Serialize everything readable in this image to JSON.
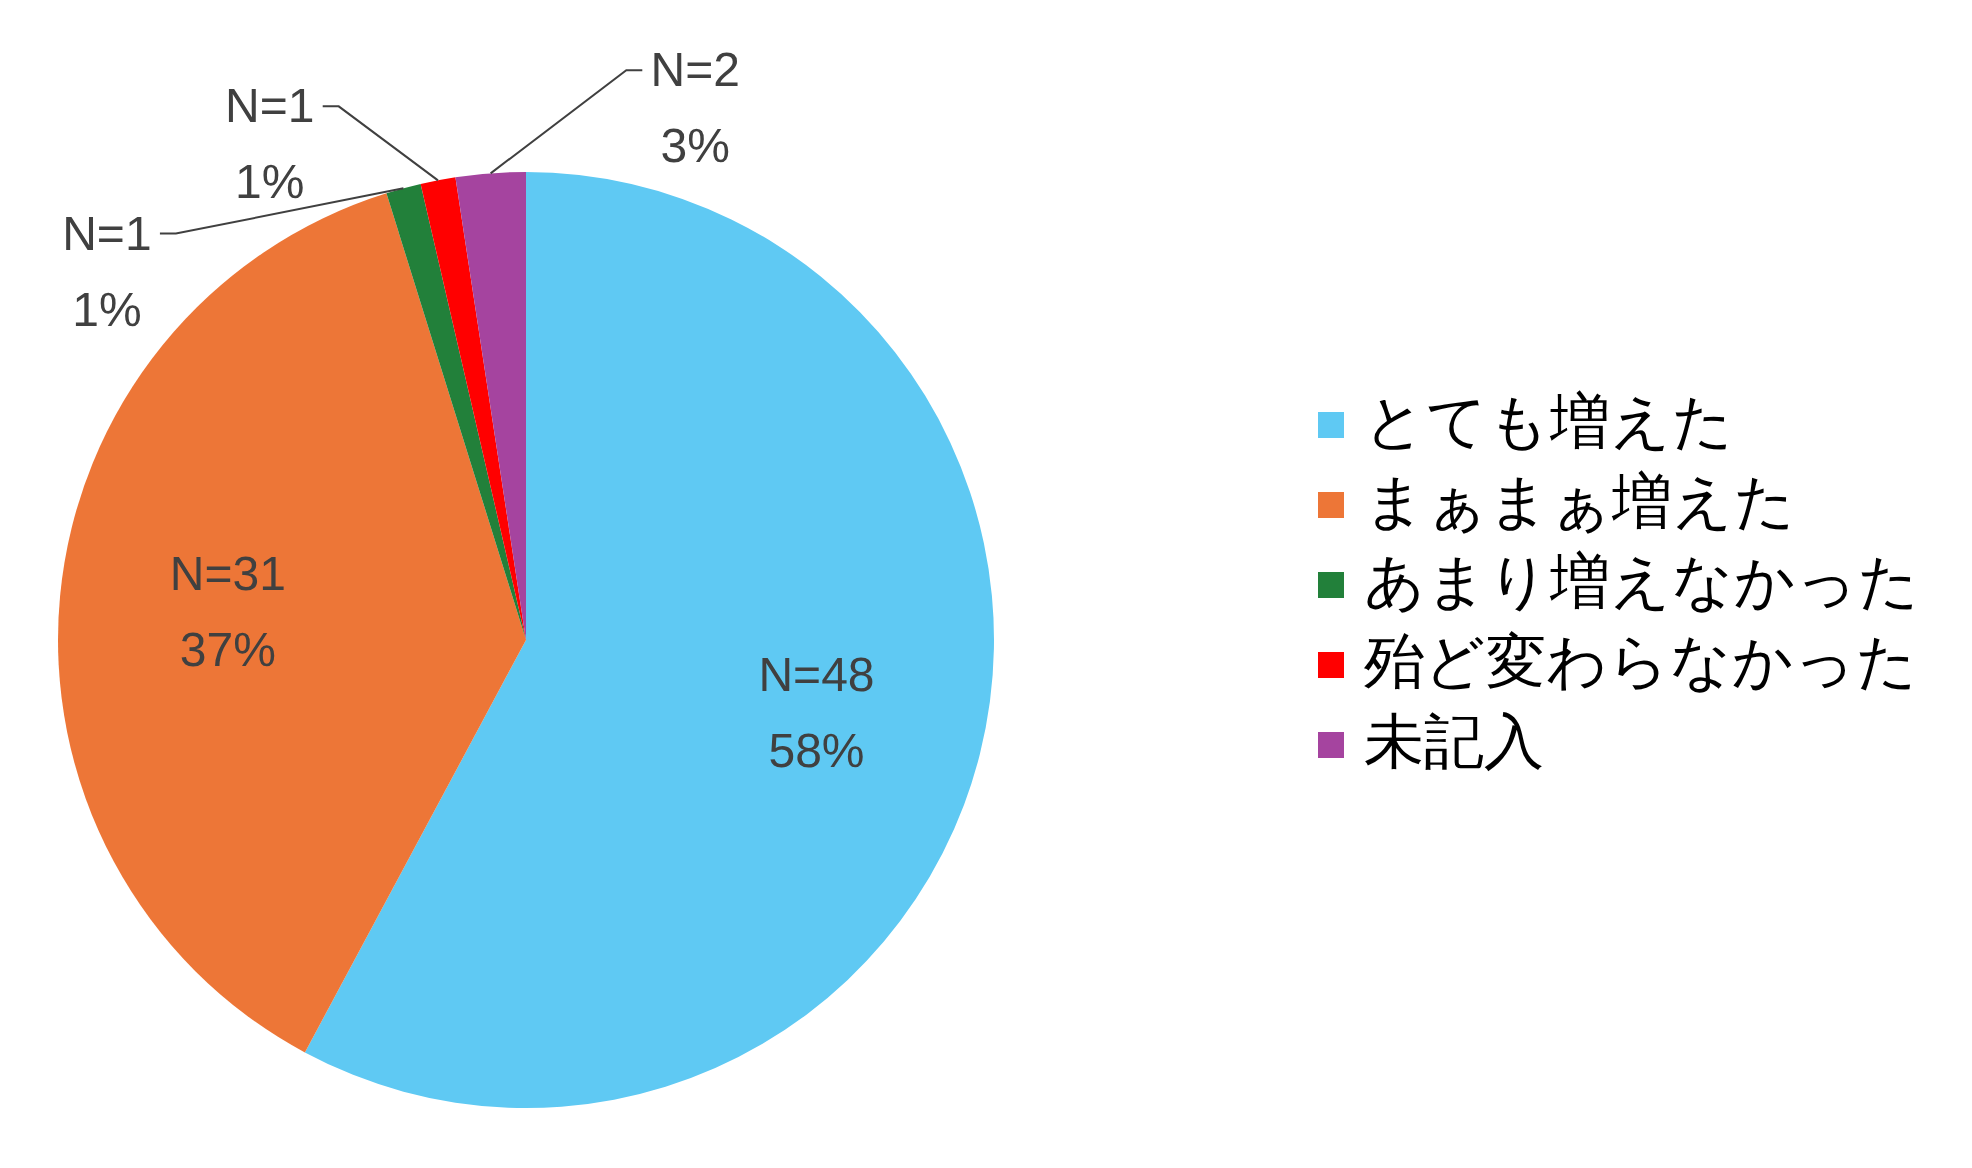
{
  "chart_data": {
    "type": "pie",
    "categories": [
      "とても増えた",
      "まぁまぁ増えた",
      "あまり増えなかった",
      "殆ど変わらなかった",
      "未記入"
    ],
    "values": [
      48,
      31,
      1,
      1,
      2
    ],
    "colors": [
      "#5fc9f3",
      "#ed7637",
      "#22803a",
      "#ff0000",
      "#a5449f"
    ],
    "value_labels": [
      "N=48\n58%",
      "N=31\n37%",
      "N=1\n1%",
      "N=1\n1%",
      "N=2\n3%"
    ],
    "legend": "right"
  }
}
